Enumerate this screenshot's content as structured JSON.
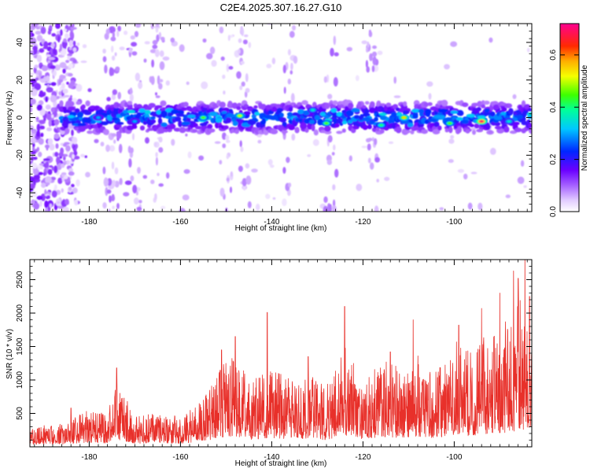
{
  "title": "C2E4.2025.307.16.27.G10",
  "chart_data": [
    {
      "type": "heatmap",
      "title": "C2E4.2025.307.16.27.G10",
      "xlabel": "Height of straight line (km)",
      "ylabel": "Frequency (Hz)",
      "xlim": [
        -193,
        -83
      ],
      "ylim": [
        -50,
        50
      ],
      "xticks": [
        -180,
        -160,
        -140,
        -120,
        -100
      ],
      "yticks": [
        -40,
        -20,
        0,
        20,
        40
      ],
      "colorbar": {
        "label": "Normalized spectral amplitude",
        "range": [
          0,
          0.72
        ],
        "ticks": [
          0.0,
          0.2,
          0.4,
          0.6
        ],
        "tick_labels": [
          "0.0",
          "0.2",
          "0.4",
          "0.6"
        ]
      },
      "ridge_center_hz": 0,
      "ridge_halfwidth_hz": 8,
      "hotspots": [
        {
          "x": -94,
          "y": -2,
          "v": 0.7
        },
        {
          "x": -111,
          "y": 0,
          "v": 0.55
        },
        {
          "x": -128,
          "y": -3,
          "v": 0.45
        },
        {
          "x": -147,
          "y": 1,
          "v": 0.5
        },
        {
          "x": -155,
          "y": 0,
          "v": 0.45
        },
        {
          "x": -131,
          "y": 4,
          "v": 0.35
        },
        {
          "x": -101,
          "y": -3,
          "v": 0.45
        },
        {
          "x": -116,
          "y": -4,
          "v": 0.4
        },
        {
          "x": -178,
          "y": 0,
          "v": 0.3
        },
        {
          "x": -170,
          "y": -2,
          "v": 0.3
        },
        {
          "x": -88,
          "y": -2,
          "v": 0.35
        }
      ]
    },
    {
      "type": "line",
      "xlabel": "Height of straight line (km)",
      "ylabel": "SNR (10 * v/v)",
      "xlim": [
        -193,
        -83
      ],
      "ylim": [
        0,
        2800
      ],
      "xticks": [
        -180,
        -160,
        -140,
        -120,
        -100
      ],
      "yticks": [
        500,
        1000,
        1500,
        2000,
        2500
      ],
      "series": [
        {
          "name": "SNR",
          "color": "#e8302a"
        }
      ],
      "envelope": {
        "x": [
          -193,
          -185,
          -180,
          -176,
          -174,
          -170,
          -165,
          -160,
          -155,
          -152,
          -148,
          -145,
          -140,
          -136,
          -132,
          -128,
          -124,
          -120,
          -116,
          -112,
          -108,
          -104,
          -100,
          -96,
          -92,
          -88,
          -85,
          -83
        ],
        "y": [
          300,
          320,
          550,
          450,
          950,
          420,
          480,
          430,
          650,
          1050,
          1350,
          900,
          1100,
          950,
          1050,
          850,
          1450,
          900,
          1200,
          1150,
          1300,
          1050,
          1500,
          1350,
          1700,
          1800,
          2200,
          1700
        ]
      },
      "peaks": [
        {
          "x": -184,
          "y": 580
        },
        {
          "x": -174,
          "y": 1180
        },
        {
          "x": -151,
          "y": 1450
        },
        {
          "x": -148,
          "y": 1650
        },
        {
          "x": -141,
          "y": 2010
        },
        {
          "x": -132,
          "y": 1350
        },
        {
          "x": -124,
          "y": 2100
        },
        {
          "x": -114,
          "y": 1420
        },
        {
          "x": -109,
          "y": 1900
        },
        {
          "x": -99,
          "y": 1820
        },
        {
          "x": -94,
          "y": 2070
        },
        {
          "x": -90,
          "y": 2300
        },
        {
          "x": -87,
          "y": 2630
        },
        {
          "x": -86,
          "y": 2520
        },
        {
          "x": -84.5,
          "y": 2800
        },
        {
          "x": -83.5,
          "y": 2250
        }
      ]
    }
  ]
}
